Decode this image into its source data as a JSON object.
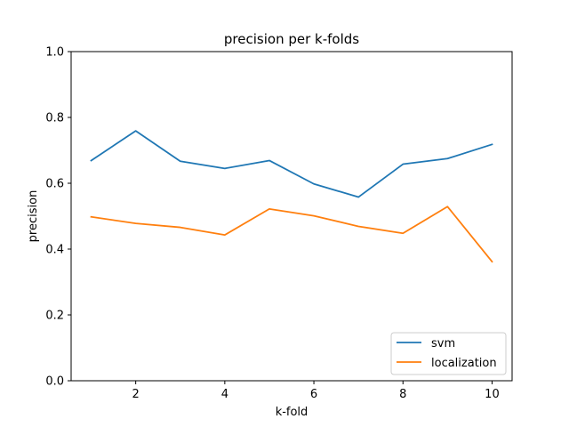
{
  "chart_data": {
    "type": "line",
    "title": "precision per k-folds",
    "xlabel": "k-fold",
    "ylabel": "precision",
    "xlim": [
      0.55,
      10.45
    ],
    "ylim": [
      0.0,
      1.0
    ],
    "xticks": [
      2,
      4,
      6,
      8,
      10
    ],
    "yticks": [
      0.0,
      0.2,
      0.4,
      0.6,
      0.8,
      1.0
    ],
    "ytick_labels": [
      "0.0",
      "0.2",
      "0.4",
      "0.6",
      "0.8",
      "1.0"
    ],
    "grid": false,
    "legend_position": "lower right",
    "x": [
      1,
      2,
      3,
      4,
      5,
      6,
      7,
      8,
      9,
      10
    ],
    "series": [
      {
        "name": "svm",
        "color": "#1f77b4",
        "values": [
          0.669,
          0.759,
          0.667,
          0.645,
          0.669,
          0.598,
          0.558,
          0.658,
          0.675,
          0.718
        ]
      },
      {
        "name": "localization",
        "color": "#ff7f0e",
        "values": [
          0.498,
          0.478,
          0.466,
          0.443,
          0.522,
          0.501,
          0.469,
          0.448,
          0.529,
          0.362
        ]
      }
    ]
  }
}
